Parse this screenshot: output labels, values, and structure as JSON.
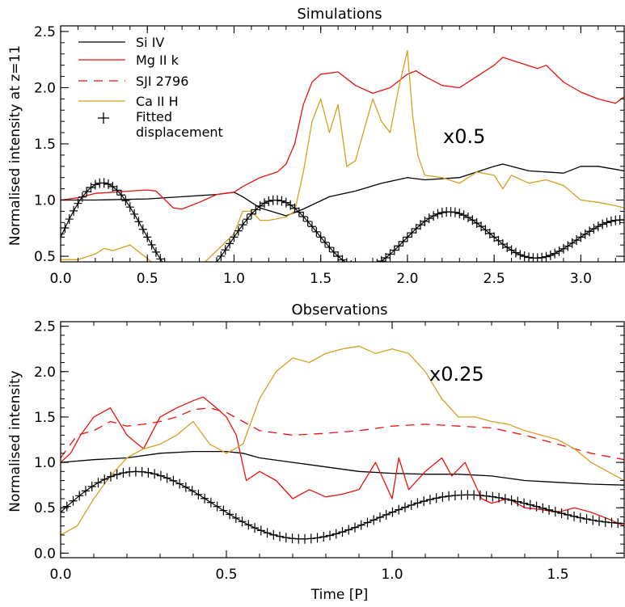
{
  "colors": {
    "si": "#000000",
    "mg": "#e8120f",
    "sji": "#e8120f",
    "ca": "#d4a020",
    "fit": "#000000"
  },
  "chart_data": [
    {
      "type": "line",
      "title": "Simulations",
      "xlabel": "",
      "ylabel": "Normalised intensity at z=11",
      "xlim": [
        0,
        3.25
      ],
      "ylim": [
        0.45,
        2.55
      ],
      "xticks": [
        "0.0",
        "0.5",
        "1.0",
        "1.5",
        "2.0",
        "2.5",
        "3.0"
      ],
      "yticks": [
        "0.5",
        "1.0",
        "1.5",
        "2.0",
        "2.5"
      ],
      "annotation": "x0.5",
      "legend": {
        "position": "top-left",
        "entries": [
          {
            "label": "Si IV",
            "style": "solid",
            "color": "#000000"
          },
          {
            "label": "Mg II k",
            "style": "solid",
            "color": "#e8120f"
          },
          {
            "label": "SJI 2796",
            "style": "dashed",
            "color": "#e8120f"
          },
          {
            "label": "Ca II H",
            "style": "solid",
            "color": "#d4a020"
          },
          {
            "label": "Fitted",
            "label2": "displacement",
            "style": "plus",
            "color": "#000000"
          }
        ]
      },
      "series": [
        {
          "name": "Si IV",
          "color": "#000000",
          "style": "solid",
          "x": [
            0,
            0.2,
            0.5,
            0.7,
            0.9,
            1.0,
            1.05,
            1.15,
            1.3,
            1.4,
            1.55,
            1.7,
            1.85,
            2.0,
            2.1,
            2.3,
            2.5,
            2.55,
            2.7,
            2.9,
            3.0,
            3.1,
            3.25
          ],
          "y": [
            1.0,
            1.0,
            1.01,
            1.03,
            1.05,
            1.07,
            1.03,
            0.93,
            0.86,
            0.92,
            1.03,
            1.08,
            1.15,
            1.2,
            1.18,
            1.2,
            1.3,
            1.32,
            1.26,
            1.24,
            1.3,
            1.3,
            1.26
          ]
        },
        {
          "name": "Mg II k",
          "color": "#e8120f",
          "style": "solid",
          "x": [
            0,
            0.1,
            0.2,
            0.3,
            0.4,
            0.5,
            0.55,
            0.65,
            0.7,
            0.8,
            0.9,
            1.0,
            1.05,
            1.15,
            1.25,
            1.3,
            1.35,
            1.4,
            1.45,
            1.5,
            1.6,
            1.7,
            1.8,
            1.9,
            2.0,
            2.05,
            2.1,
            2.2,
            2.3,
            2.4,
            2.5,
            2.55,
            2.65,
            2.75,
            2.8,
            2.9,
            3.0,
            3.1,
            3.2,
            3.25
          ],
          "y": [
            1.0,
            1.02,
            1.06,
            1.07,
            1.08,
            1.09,
            1.08,
            0.93,
            0.92,
            0.98,
            1.05,
            1.07,
            1.12,
            1.2,
            1.25,
            1.32,
            1.5,
            1.85,
            2.05,
            2.12,
            2.14,
            2.02,
            1.95,
            2.0,
            2.12,
            2.15,
            2.1,
            2.02,
            2.0,
            2.1,
            2.2,
            2.27,
            2.22,
            2.17,
            2.2,
            2.05,
            1.96,
            1.9,
            1.86,
            1.92
          ]
        },
        {
          "name": "Ca II H",
          "color": "#d4a020",
          "style": "solid",
          "x": [
            0,
            0.1,
            0.2,
            0.25,
            0.3,
            0.4,
            0.5,
            0.6,
            0.7,
            0.8,
            0.9,
            1.0,
            1.05,
            1.1,
            1.15,
            1.2,
            1.3,
            1.35,
            1.4,
            1.45,
            1.5,
            1.55,
            1.6,
            1.65,
            1.7,
            1.8,
            1.85,
            1.9,
            1.95,
            2.0,
            2.03,
            2.06,
            2.1,
            2.2,
            2.3,
            2.4,
            2.5,
            2.55,
            2.6,
            2.7,
            2.8,
            2.9,
            3.0,
            3.1,
            3.2,
            3.25
          ],
          "y": [
            0.47,
            0.47,
            0.52,
            0.57,
            0.55,
            0.6,
            0.48,
            0.35,
            0.3,
            0.4,
            0.55,
            0.7,
            0.9,
            0.9,
            0.82,
            0.82,
            0.85,
            0.9,
            1.25,
            1.7,
            1.9,
            1.6,
            1.85,
            1.3,
            1.35,
            1.9,
            1.7,
            1.6,
            2.0,
            2.33,
            1.75,
            1.4,
            1.22,
            1.2,
            1.15,
            1.25,
            1.22,
            1.1,
            1.22,
            1.15,
            1.18,
            1.13,
            1.0,
            0.98,
            0.95,
            0.93
          ]
        },
        {
          "name": "Fitted displacement",
          "color": "#000000",
          "style": "plus",
          "fn": {
            "type": "damped_sine",
            "offset": 0.67,
            "decay": 0.38,
            "amp": 0.53,
            "period": 1.0,
            "phase": 0.0,
            "x0": 0.0,
            "x1": 3.25,
            "n": 130
          }
        }
      ]
    },
    {
      "type": "line",
      "title": "Observations",
      "xlabel": "Time [P]",
      "ylabel": "Normalised intensity",
      "xlim": [
        0,
        1.7
      ],
      "ylim": [
        -0.05,
        2.55
      ],
      "xticks": [
        "0.0",
        "0.5",
        "1.0",
        "1.5"
      ],
      "yticks": [
        "0.0",
        "0.5",
        "1.0",
        "1.5",
        "2.0",
        "2.5"
      ],
      "annotation": "x0.25",
      "series": [
        {
          "name": "Si IV",
          "color": "#000000",
          "style": "solid",
          "x": [
            0,
            0.1,
            0.2,
            0.3,
            0.4,
            0.5,
            0.55,
            0.6,
            0.7,
            0.8,
            0.9,
            1.0,
            1.1,
            1.2,
            1.3,
            1.4,
            1.5,
            1.6,
            1.7
          ],
          "y": [
            1.0,
            1.03,
            1.05,
            1.1,
            1.12,
            1.12,
            1.1,
            1.05,
            1.0,
            0.95,
            0.9,
            0.88,
            0.87,
            0.87,
            0.85,
            0.8,
            0.78,
            0.76,
            0.75
          ]
        },
        {
          "name": "Mg II k",
          "color": "#e8120f",
          "style": "solid",
          "x": [
            0,
            0.03,
            0.06,
            0.1,
            0.15,
            0.2,
            0.25,
            0.3,
            0.35,
            0.4,
            0.43,
            0.47,
            0.5,
            0.53,
            0.56,
            0.6,
            0.65,
            0.7,
            0.75,
            0.8,
            0.85,
            0.9,
            0.95,
            1.0,
            1.02,
            1.05,
            1.1,
            1.15,
            1.18,
            1.22,
            1.27,
            1.3,
            1.35,
            1.4,
            1.45,
            1.5,
            1.55,
            1.6,
            1.65,
            1.7
          ],
          "y": [
            1.0,
            1.1,
            1.3,
            1.5,
            1.6,
            1.3,
            1.15,
            1.5,
            1.6,
            1.68,
            1.72,
            1.6,
            1.5,
            1.3,
            0.8,
            0.9,
            0.8,
            0.6,
            0.7,
            0.62,
            0.65,
            0.7,
            1.0,
            0.6,
            1.05,
            0.7,
            0.9,
            1.05,
            0.85,
            1.0,
            0.6,
            0.55,
            0.6,
            0.5,
            0.48,
            0.45,
            0.5,
            0.45,
            0.38,
            0.3
          ]
        },
        {
          "name": "SJI 2796",
          "color": "#e8120f",
          "style": "dashed",
          "x": [
            0,
            0.05,
            0.1,
            0.15,
            0.2,
            0.25,
            0.3,
            0.35,
            0.4,
            0.45,
            0.5,
            0.55,
            0.6,
            0.7,
            0.8,
            0.9,
            1.0,
            1.1,
            1.2,
            1.3,
            1.4,
            1.5,
            1.6,
            1.7
          ],
          "y": [
            1.05,
            1.3,
            1.35,
            1.45,
            1.4,
            1.42,
            1.45,
            1.5,
            1.58,
            1.6,
            1.55,
            1.45,
            1.35,
            1.3,
            1.32,
            1.35,
            1.4,
            1.42,
            1.4,
            1.38,
            1.3,
            1.2,
            1.1,
            1.03
          ]
        },
        {
          "name": "Ca II H",
          "color": "#d4a020",
          "style": "solid",
          "x": [
            0,
            0.05,
            0.1,
            0.15,
            0.2,
            0.25,
            0.3,
            0.35,
            0.4,
            0.45,
            0.5,
            0.55,
            0.58,
            0.6,
            0.65,
            0.7,
            0.75,
            0.8,
            0.85,
            0.9,
            0.95,
            1.0,
            1.05,
            1.1,
            1.15,
            1.2,
            1.25,
            1.3,
            1.35,
            1.4,
            1.45,
            1.5,
            1.55,
            1.6,
            1.65,
            1.7
          ],
          "y": [
            0.2,
            0.3,
            0.6,
            0.85,
            1.05,
            1.15,
            1.2,
            1.3,
            1.45,
            1.2,
            1.1,
            1.2,
            1.5,
            1.7,
            2.0,
            2.15,
            2.1,
            2.2,
            2.25,
            2.28,
            2.2,
            2.25,
            2.2,
            2.0,
            1.7,
            1.5,
            1.5,
            1.45,
            1.42,
            1.35,
            1.3,
            1.25,
            1.15,
            1.0,
            0.9,
            0.8
          ]
        },
        {
          "name": "Fitted displacement",
          "color": "#000000",
          "style": "plus",
          "fn": {
            "type": "damped_sine",
            "offset": 0.45,
            "decay": 0.85,
            "amp": 0.55,
            "period": 1.0,
            "phase": 0.0,
            "x0": 0.0,
            "x1": 1.7,
            "n": 90
          }
        }
      ]
    }
  ]
}
